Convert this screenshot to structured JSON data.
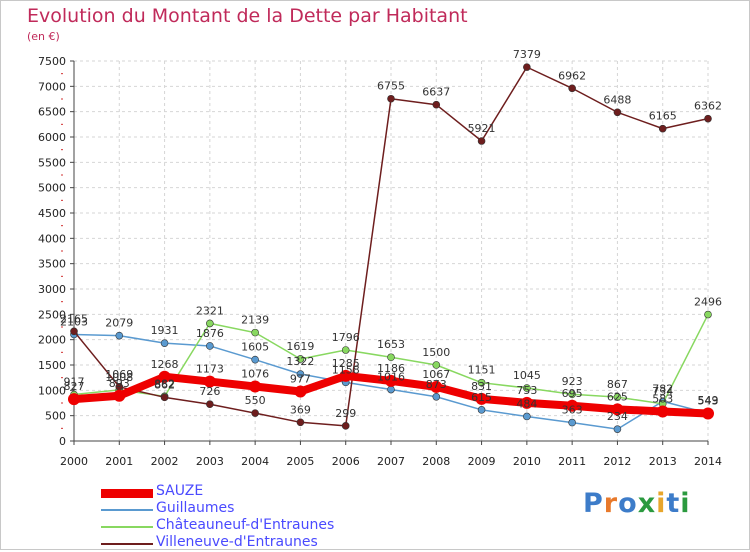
{
  "title": "Evolution du Montant de la Dette par Habitant",
  "unit": "(en €)",
  "logo": {
    "letters": [
      "P",
      "r",
      "o",
      "x",
      "i",
      "t",
      "i"
    ],
    "colors": [
      "#3d7cc9",
      "#e8792b",
      "#3d7cc9",
      "#2b9a3f",
      "#e8a62b",
      "#3d7cc9",
      "#2b9a3f"
    ]
  },
  "chart_data": {
    "type": "line",
    "title": "Evolution du Montant de la Dette par Habitant",
    "ylabel": "(en €)",
    "x": [
      "2000",
      "2001",
      "2002",
      "2003",
      "2004",
      "2005",
      "2006",
      "2007",
      "2008",
      "2009",
      "2010",
      "2011",
      "2012",
      "2013",
      "2014"
    ],
    "ylim": [
      0,
      7500
    ],
    "yticks": [
      0,
      500,
      1000,
      1500,
      2000,
      2500,
      3000,
      3500,
      4000,
      4500,
      5000,
      5500,
      6000,
      6500,
      7000,
      7500
    ],
    "grid": true,
    "legend_position": "bottom-left",
    "series": [
      {
        "name": "SAUZE",
        "color": "#ee0000",
        "values": [
          827,
          893,
          1268,
          1173,
          1076,
          977,
          1285,
          1186,
          1067,
          831,
          753,
          695,
          625,
          583,
          543
        ]
      },
      {
        "name": "Guillaumes",
        "color": "#5a9ad0",
        "values": [
          2103,
          2079,
          1931,
          1876,
          1605,
          1322,
          1158,
          1016,
          873,
          615,
          484,
          363,
          234,
          782,
          549
        ]
      },
      {
        "name": "Châteauneuf-d'Entraunes",
        "color": "#88d860",
        "values": [
          917,
          1008,
          882,
          2321,
          2139,
          1619,
          1796,
          1653,
          1500,
          1151,
          1045,
          923,
          867,
          734,
          2496
        ]
      },
      {
        "name": "Villeneuve-d'Entraunes",
        "color": "#6e1e1e",
        "values": [
          2165,
          1069,
          862,
          726,
          550,
          369,
          299,
          6755,
          6637,
          5921,
          7379,
          6962,
          6488,
          6165,
          6362
        ]
      }
    ]
  }
}
